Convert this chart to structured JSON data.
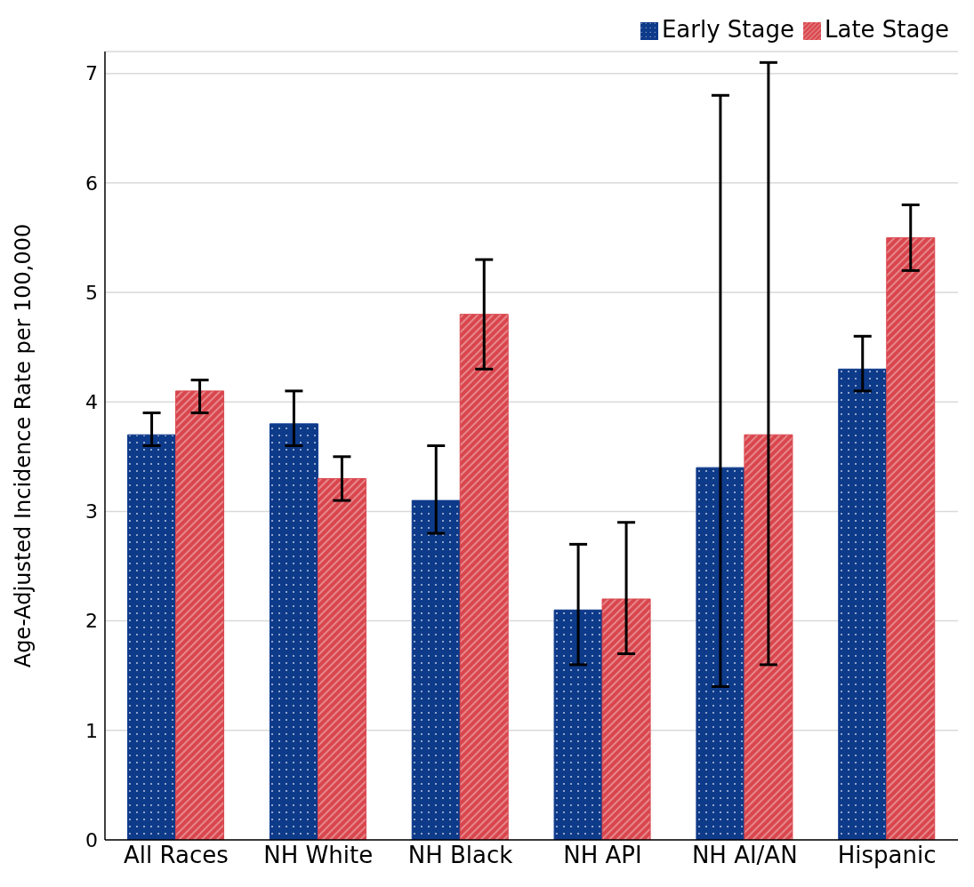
{
  "chart_data": {
    "type": "bar",
    "ylabel": "Age-Adjusted Incidence Rate per 100,000",
    "categories": [
      "All Races",
      "NH White",
      "NH Black",
      "NH API",
      "NH AI/AN",
      "Hispanic"
    ],
    "series": [
      {
        "name": "Early Stage",
        "color": "#0e3a8a",
        "values": [
          3.7,
          3.8,
          3.1,
          2.1,
          3.4,
          4.3
        ],
        "errors": [
          [
            3.6,
            3.9
          ],
          [
            3.6,
            4.1
          ],
          [
            2.8,
            3.6
          ],
          [
            1.6,
            2.7
          ],
          [
            1.4,
            6.8
          ],
          [
            4.1,
            4.6
          ]
        ]
      },
      {
        "name": "Late Stage",
        "color": "#d9464d",
        "values": [
          4.1,
          3.3,
          4.8,
          2.2,
          3.7,
          5.5
        ],
        "errors": [
          [
            3.9,
            4.2
          ],
          [
            3.1,
            3.5
          ],
          [
            4.3,
            5.3
          ],
          [
            1.7,
            2.9
          ],
          [
            1.6,
            7.1
          ],
          [
            5.2,
            5.8
          ]
        ]
      }
    ],
    "ylim": [
      0,
      7.2
    ],
    "yticks": [
      0,
      1,
      2,
      3,
      4,
      5,
      6,
      7
    ],
    "grid": "y",
    "legend": "top right"
  }
}
